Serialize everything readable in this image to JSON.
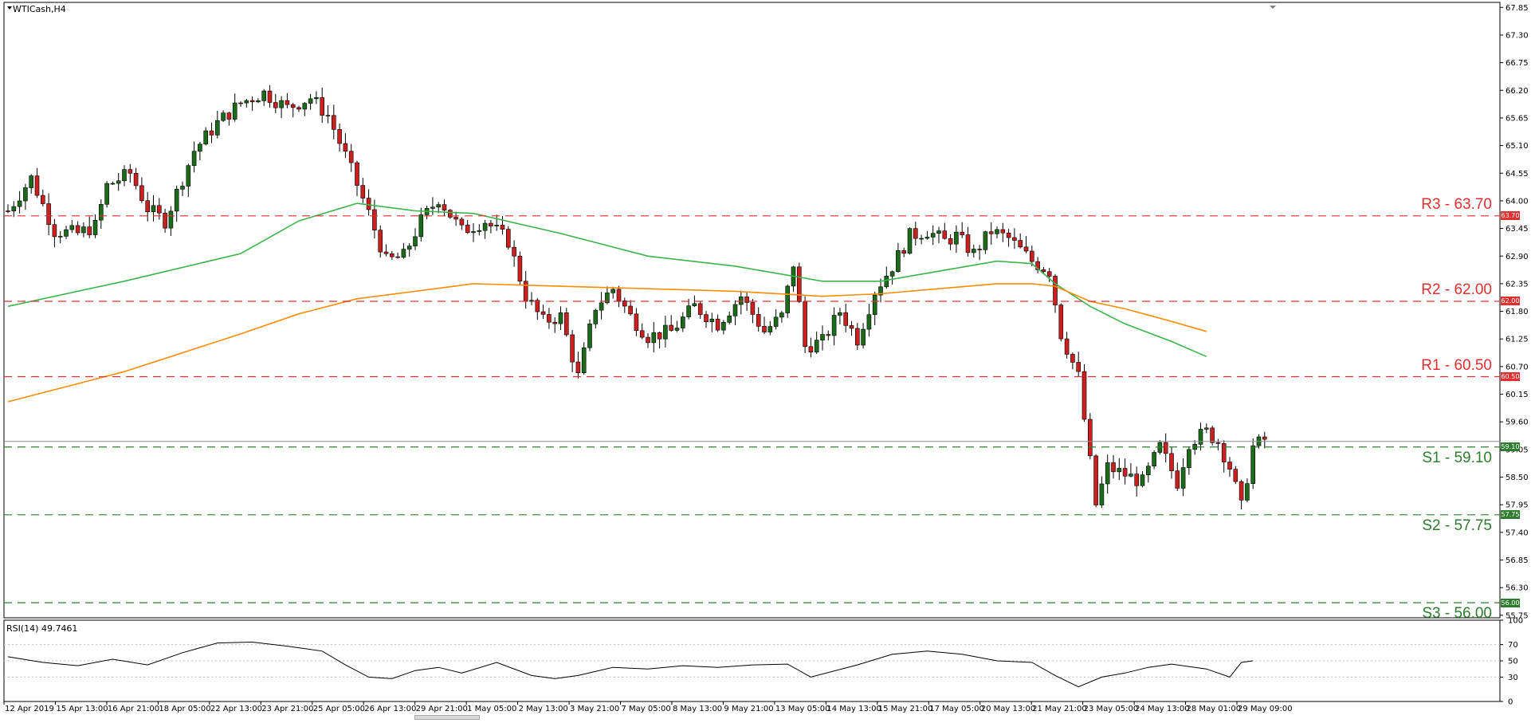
{
  "chart_title": "WTICash,H4",
  "rsi_title": "RSI(14) 49.7461",
  "colors": {
    "bull": "#1b6b1b",
    "bear": "#cc1f1f",
    "ma_fast": "#3cb44b",
    "ma_slow": "#ff8c00",
    "resistance": "#e03030",
    "support": "#2e7d2e",
    "rsi_line": "#000000"
  },
  "chart_data": [
    {
      "type": "candlestick",
      "symbol": "WTICash",
      "timeframe": "H4",
      "y_axis_ticks": [
        "67.85",
        "67.30",
        "66.75",
        "66.20",
        "65.65",
        "65.10",
        "64.55",
        "64.00",
        "63.45",
        "62.90",
        "62.35",
        "61.80",
        "61.25",
        "60.70",
        "60.15",
        "59.60",
        "59.05",
        "58.50",
        "57.95",
        "57.40",
        "56.85",
        "56.30",
        "55.75"
      ],
      "ylim": [
        55.7,
        67.95
      ],
      "x_tick_labels": [
        "12 Apr 2019",
        "15 Apr 13:00",
        "16 Apr 21:00",
        "18 Apr 05:00",
        "22 Apr 13:00",
        "23 Apr 21:00",
        "25 Apr 05:00",
        "26 Apr 13:00",
        "29 Apr 21:00",
        "1 May 05:00",
        "2 May 13:00",
        "3 May 21:00",
        "7 May 05:00",
        "8 May 13:00",
        "9 May 21:00",
        "13 May 05:00",
        "14 May 13:00",
        "15 May 21:00",
        "17 May 05:00",
        "20 May 13:00",
        "21 May 21:00",
        "23 May 05:00",
        "24 May 13:00",
        "28 May 01:00",
        "29 May 09:00"
      ],
      "levels": [
        {
          "name": "R3",
          "text": "R3 - 63.70",
          "value": 63.7,
          "tag": "63.70",
          "kind": "resistance"
        },
        {
          "name": "R2",
          "text": "R2 - 62.00",
          "value": 62.0,
          "tag": "62.00",
          "kind": "resistance"
        },
        {
          "name": "R1",
          "text": "R1 - 60.50",
          "value": 60.5,
          "tag": "60.50",
          "kind": "resistance"
        },
        {
          "name": "S1",
          "text": "S1 - 59.10",
          "value": 59.1,
          "tag": "59.10",
          "kind": "support"
        },
        {
          "name": "S2",
          "text": "S2 - 57.75",
          "value": 57.75,
          "tag": "57.75",
          "kind": "support"
        },
        {
          "name": "S3",
          "text": "S3 - 56.00",
          "value": 56.0,
          "tag": "56.00",
          "kind": "support"
        }
      ],
      "current_price": 59.1,
      "ohlc_waypoints": [
        [
          0,
          63.8
        ],
        [
          4,
          64.45
        ],
        [
          8,
          63.4
        ],
        [
          12,
          63.35
        ],
        [
          15,
          63.5
        ],
        [
          17,
          64.3
        ],
        [
          21,
          64.55
        ],
        [
          24,
          63.85
        ],
        [
          27,
          63.6
        ],
        [
          32,
          65.0
        ],
        [
          36,
          65.55
        ],
        [
          40,
          65.95
        ],
        [
          44,
          66.15
        ],
        [
          48,
          65.85
        ],
        [
          52,
          66.05
        ],
        [
          55,
          65.7
        ],
        [
          58,
          64.9
        ],
        [
          62,
          63.75
        ],
        [
          65,
          62.8
        ],
        [
          68,
          62.9
        ],
        [
          71,
          63.6
        ],
        [
          74,
          64.05
        ],
        [
          78,
          63.4
        ],
        [
          82,
          63.6
        ],
        [
          86,
          63.2
        ],
        [
          89,
          62.1
        ],
        [
          92,
          61.6
        ],
        [
          95,
          61.7
        ],
        [
          98,
          60.5
        ],
        [
          101,
          61.9
        ],
        [
          104,
          62.25
        ],
        [
          107,
          61.7
        ],
        [
          110,
          61.3
        ],
        [
          114,
          61.4
        ],
        [
          118,
          61.9
        ],
        [
          122,
          61.55
        ],
        [
          126,
          62.1
        ],
        [
          130,
          61.4
        ],
        [
          133,
          61.7
        ],
        [
          135,
          62.75
        ],
        [
          137,
          61.1
        ],
        [
          140,
          61.2
        ],
        [
          143,
          61.8
        ],
        [
          146,
          61.25
        ],
        [
          149,
          62.2
        ],
        [
          152,
          62.7
        ],
        [
          155,
          63.3
        ],
        [
          158,
          63.4
        ],
        [
          161,
          63.2
        ],
        [
          163,
          63.3
        ],
        [
          166,
          62.95
        ],
        [
          169,
          63.4
        ],
        [
          172,
          63.25
        ],
        [
          176,
          62.8
        ],
        [
          179,
          62.6
        ],
        [
          181,
          61.35
        ],
        [
          184,
          60.5
        ],
        [
          187,
          57.95
        ],
        [
          189,
          58.7
        ],
        [
          192,
          58.55
        ],
        [
          195,
          58.4
        ],
        [
          198,
          59.1
        ],
        [
          201,
          58.4
        ],
        [
          203,
          59.2
        ],
        [
          206,
          59.4
        ],
        [
          208,
          59.2
        ],
        [
          210,
          58.7
        ],
        [
          212,
          57.9
        ],
        [
          214,
          59.1
        ],
        [
          216,
          59.25
        ]
      ],
      "series": [
        {
          "name": "MA fast",
          "points": [
            [
              0,
              61.9
            ],
            [
              20,
              62.4
            ],
            [
              40,
              62.95
            ],
            [
              50,
              63.6
            ],
            [
              60,
              63.95
            ],
            [
              70,
              63.8
            ],
            [
              80,
              63.75
            ],
            [
              95,
              63.35
            ],
            [
              110,
              62.9
            ],
            [
              125,
              62.7
            ],
            [
              140,
              62.4
            ],
            [
              150,
              62.4
            ],
            [
              160,
              62.6
            ],
            [
              170,
              62.8
            ],
            [
              176,
              62.75
            ],
            [
              180,
              62.35
            ],
            [
              186,
              61.9
            ],
            [
              192,
              61.55
            ],
            [
              200,
              61.2
            ],
            [
              206,
              60.9
            ]
          ]
        },
        {
          "name": "MA slow",
          "points": [
            [
              0,
              60.0
            ],
            [
              20,
              60.6
            ],
            [
              40,
              61.35
            ],
            [
              50,
              61.75
            ],
            [
              60,
              62.05
            ],
            [
              70,
              62.2
            ],
            [
              80,
              62.35
            ],
            [
              95,
              62.3
            ],
            [
              110,
              62.25
            ],
            [
              125,
              62.2
            ],
            [
              140,
              62.1
            ],
            [
              150,
              62.15
            ],
            [
              160,
              62.25
            ],
            [
              170,
              62.35
            ],
            [
              176,
              62.35
            ],
            [
              180,
              62.3
            ],
            [
              186,
              62.0
            ],
            [
              192,
              61.85
            ],
            [
              200,
              61.6
            ],
            [
              206,
              61.4
            ]
          ]
        }
      ]
    },
    {
      "type": "line",
      "indicator": "RSI(14)",
      "value": 49.7461,
      "y_axis_ticks": [
        "100",
        "70",
        "50",
        "30",
        "0"
      ],
      "ylim": [
        0,
        100
      ],
      "levels": [
        70,
        50,
        30
      ],
      "points": [
        [
          0,
          55
        ],
        [
          6,
          48
        ],
        [
          12,
          44
        ],
        [
          18,
          52
        ],
        [
          24,
          45
        ],
        [
          30,
          60
        ],
        [
          36,
          72
        ],
        [
          42,
          73
        ],
        [
          48,
          68
        ],
        [
          54,
          62
        ],
        [
          58,
          45
        ],
        [
          62,
          30
        ],
        [
          66,
          28
        ],
        [
          70,
          38
        ],
        [
          74,
          42
        ],
        [
          78,
          35
        ],
        [
          84,
          48
        ],
        [
          90,
          32
        ],
        [
          94,
          28
        ],
        [
          98,
          32
        ],
        [
          104,
          42
        ],
        [
          110,
          40
        ],
        [
          116,
          44
        ],
        [
          122,
          42
        ],
        [
          128,
          45
        ],
        [
          134,
          46
        ],
        [
          138,
          30
        ],
        [
          146,
          45
        ],
        [
          152,
          58
        ],
        [
          158,
          62
        ],
        [
          164,
          58
        ],
        [
          170,
          50
        ],
        [
          176,
          48
        ],
        [
          180,
          32
        ],
        [
          184,
          18
        ],
        [
          188,
          30
        ],
        [
          192,
          35
        ],
        [
          196,
          42
        ],
        [
          200,
          46
        ],
        [
          206,
          40
        ],
        [
          210,
          30
        ],
        [
          212,
          48
        ],
        [
          214,
          50
        ]
      ]
    }
  ]
}
